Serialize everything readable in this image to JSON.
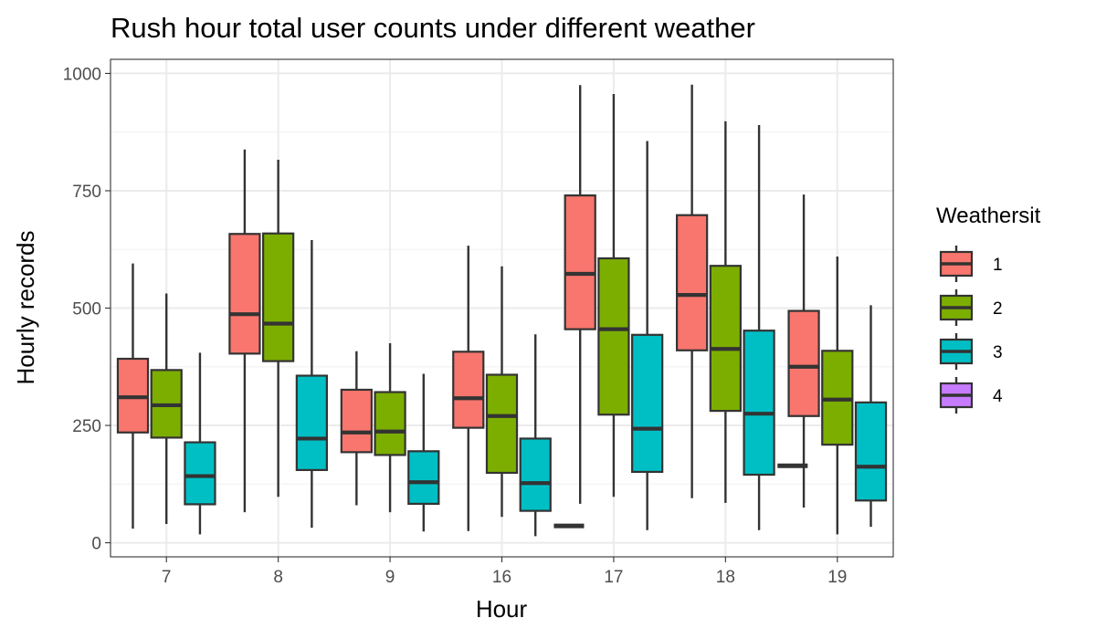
{
  "chart_data": {
    "type": "boxplot",
    "title": "Rush hour total user counts under different weather",
    "xlabel": "Hour",
    "ylabel": "Hourly records",
    "categories": [
      "7",
      "8",
      "9",
      "16",
      "17",
      "18",
      "19"
    ],
    "ylim": [
      -30,
      1030
    ],
    "yticks": [
      0,
      250,
      500,
      750,
      1000
    ],
    "grid": true,
    "legend": {
      "title": "Weathersit",
      "placement": "right"
    },
    "series": [
      {
        "name": "1",
        "color": "#F8766D",
        "boxes": [
          {
            "category": "7",
            "min": 30,
            "q1": 235,
            "median": 310,
            "q3": 392,
            "max": 595
          },
          {
            "category": "8",
            "min": 65,
            "q1": 403,
            "median": 487,
            "q3": 658,
            "max": 838
          },
          {
            "category": "9",
            "min": 80,
            "q1": 193,
            "median": 235,
            "q3": 326,
            "max": 408
          },
          {
            "category": "16",
            "min": 25,
            "q1": 245,
            "median": 308,
            "q3": 407,
            "max": 633
          },
          {
            "category": "17",
            "min": 83,
            "q1": 455,
            "median": 573,
            "q3": 740,
            "max": 975
          },
          {
            "category": "18",
            "min": 95,
            "q1": 410,
            "median": 528,
            "q3": 698,
            "max": 976
          },
          {
            "category": "19",
            "min": 75,
            "q1": 270,
            "median": 375,
            "q3": 494,
            "max": 742
          }
        ]
      },
      {
        "name": "2",
        "color": "#7CAE00",
        "boxes": [
          {
            "category": "7",
            "min": 40,
            "q1": 224,
            "median": 293,
            "q3": 368,
            "max": 531
          },
          {
            "category": "8",
            "min": 98,
            "q1": 387,
            "median": 467,
            "q3": 659,
            "max": 816
          },
          {
            "category": "9",
            "min": 65,
            "q1": 187,
            "median": 237,
            "q3": 321,
            "max": 425
          },
          {
            "category": "16",
            "min": 55,
            "q1": 149,
            "median": 270,
            "q3": 358,
            "max": 589
          },
          {
            "category": "17",
            "min": 98,
            "q1": 273,
            "median": 455,
            "q3": 606,
            "max": 956
          },
          {
            "category": "18",
            "min": 85,
            "q1": 281,
            "median": 413,
            "q3": 590,
            "max": 898
          },
          {
            "category": "19",
            "min": 18,
            "q1": 209,
            "median": 305,
            "q3": 409,
            "max": 610
          }
        ]
      },
      {
        "name": "3",
        "color": "#00BFC4",
        "boxes": [
          {
            "category": "7",
            "min": 18,
            "q1": 82,
            "median": 142,
            "q3": 214,
            "max": 405
          },
          {
            "category": "8",
            "min": 32,
            "q1": 155,
            "median": 222,
            "q3": 356,
            "max": 645
          },
          {
            "category": "9",
            "min": 24,
            "q1": 83,
            "median": 129,
            "q3": 195,
            "max": 360
          },
          {
            "category": "16",
            "min": 14,
            "q1": 68,
            "median": 127,
            "q3": 222,
            "max": 444
          },
          {
            "category": "17",
            "min": 27,
            "q1": 151,
            "median": 243,
            "q3": 443,
            "max": 856
          },
          {
            "category": "18",
            "min": 27,
            "q1": 145,
            "median": 275,
            "q3": 452,
            "max": 890
          },
          {
            "category": "19",
            "min": 34,
            "q1": 90,
            "median": 162,
            "q3": 299,
            "max": 506
          }
        ]
      },
      {
        "name": "4",
        "color": "#C77CFF",
        "boxes": [
          {
            "category": "16",
            "min": 36,
            "q1": 36,
            "median": 36,
            "q3": 36,
            "max": 36
          },
          {
            "category": "18",
            "min": 164,
            "q1": 164,
            "median": 164,
            "q3": 164,
            "max": 164
          }
        ]
      }
    ]
  }
}
